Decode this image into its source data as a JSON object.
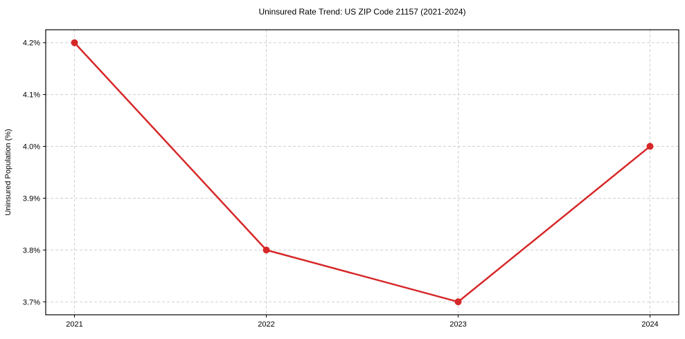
{
  "chart_data": {
    "type": "line",
    "title": "Uninsured Rate Trend: US ZIP Code 21157 (2021-2024)",
    "xlabel": "",
    "ylabel": "Uninsured Population (%)",
    "x": [
      2021,
      2022,
      2023,
      2024
    ],
    "values": [
      4.2,
      3.8,
      3.7,
      4.0
    ],
    "x_tick_labels": [
      "2021",
      "2022",
      "2023",
      "2024"
    ],
    "y_ticks": [
      3.7,
      3.8,
      3.9,
      4.0,
      4.1,
      4.2
    ],
    "y_tick_labels": [
      "3.7%",
      "3.8%",
      "3.9%",
      "4.0%",
      "4.1%",
      "4.2%"
    ],
    "xlim": [
      2020.85,
      2024.15
    ],
    "ylim": [
      3.675,
      4.225
    ],
    "grid": true,
    "legend": false,
    "line_color": "#d62728",
    "marker_color": "#d62728",
    "grid_color": "#cfcfcf",
    "background_color": "#ffffff"
  }
}
